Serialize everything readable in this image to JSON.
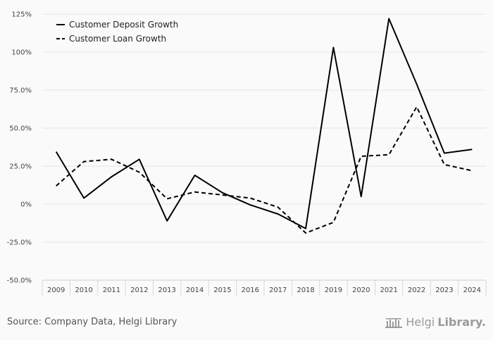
{
  "chart_data": {
    "type": "line",
    "categories": [
      "2009",
      "2010",
      "2011",
      "2012",
      "2013",
      "2014",
      "2015",
      "2016",
      "2017",
      "2018",
      "2019",
      "2020",
      "2021",
      "2022",
      "2023",
      "2024"
    ],
    "series": [
      {
        "name": "Customer Deposit Growth",
        "style": "solid",
        "color": "#000000",
        "values": [
          34.5,
          4,
          18,
          29.5,
          -11,
          19,
          7.5,
          -0.5,
          -6.5,
          -16,
          103,
          5,
          122,
          79,
          33.5,
          36
        ]
      },
      {
        "name": "Customer Loan Growth",
        "style": "dashed",
        "color": "#000000",
        "values": [
          12,
          28,
          29.5,
          21,
          3.5,
          8,
          6,
          4,
          -2,
          -19,
          -12,
          31.5,
          32.5,
          64,
          26,
          22
        ]
      }
    ],
    "yticks": [
      "125%",
      "100%",
      "75.0%",
      "50.0%",
      "25.0%",
      "0%",
      "-25.0%",
      "-50.0%"
    ],
    "ylim": [
      -50,
      125
    ],
    "grid": true,
    "legend": "top-left"
  },
  "footer": {
    "source": "Source: Company Data, Helgi Library",
    "brand_part1": "Helgi",
    "brand_part2": "Library."
  }
}
